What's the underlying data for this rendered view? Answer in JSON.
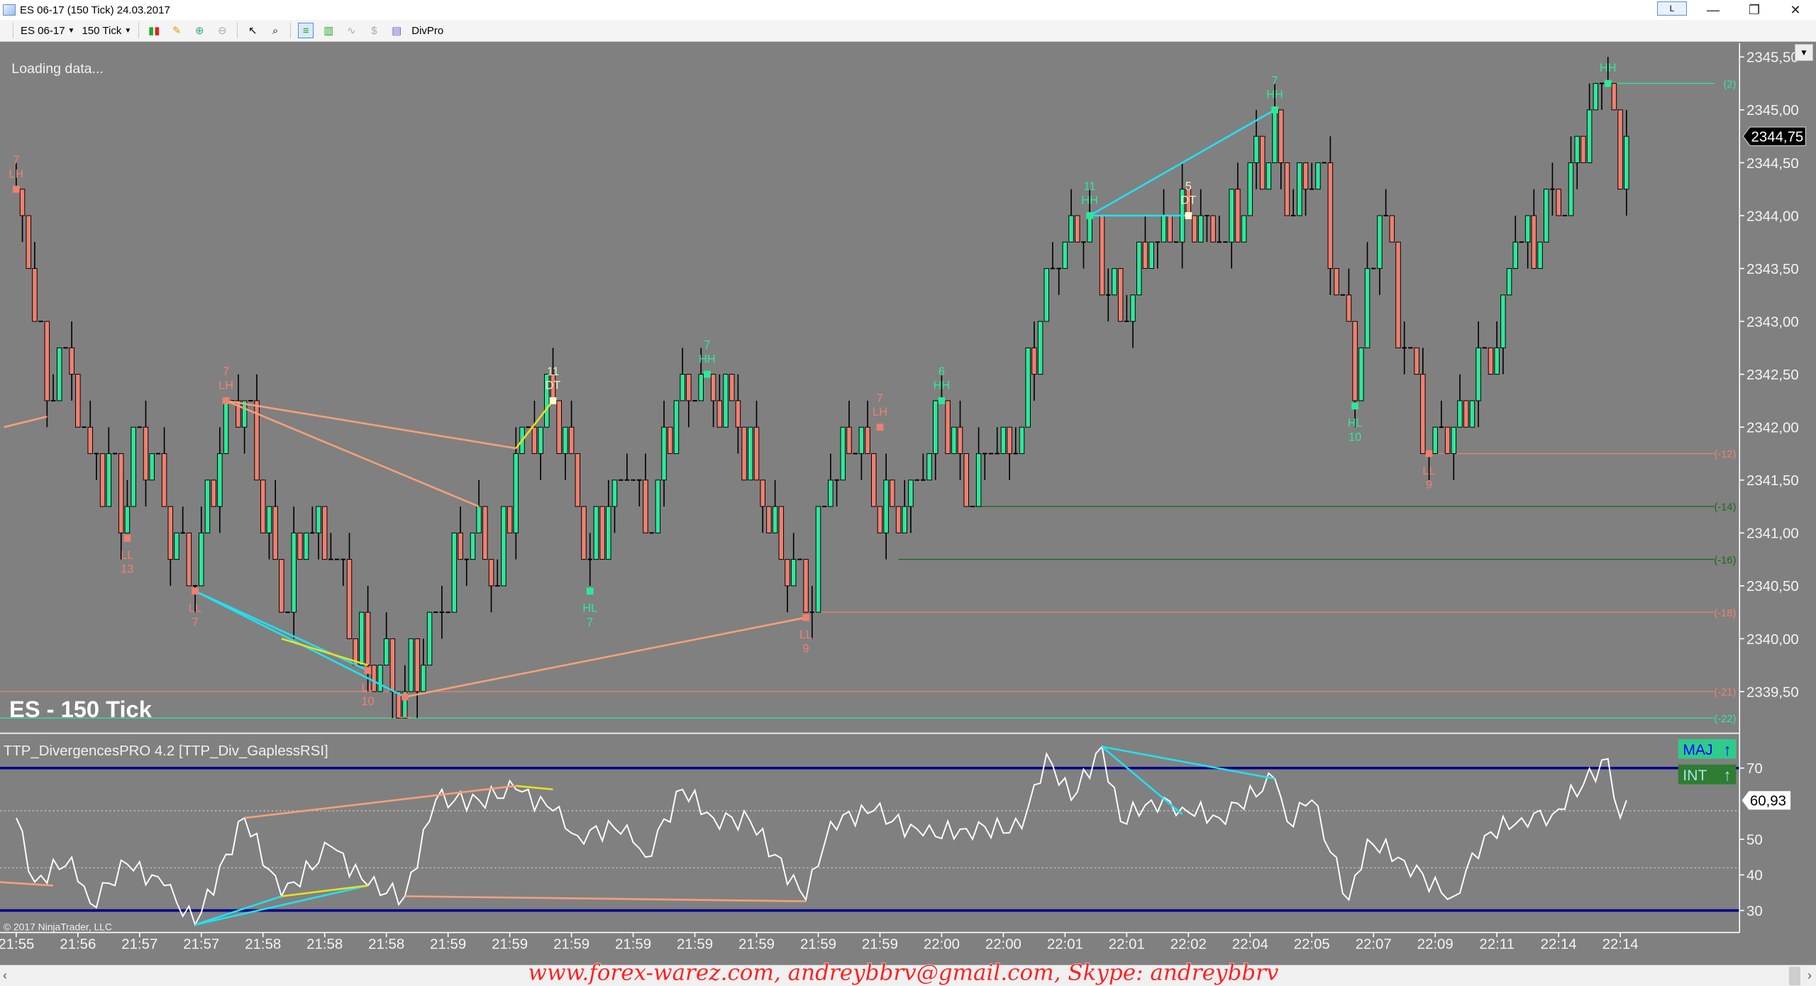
{
  "window": {
    "title": "ES 06-17 (150 Tick)  24.03.2017",
    "layout_button": "L",
    "minimize": "—",
    "restore": "❐",
    "close": "✕"
  },
  "toolbar": {
    "instrument": "ES 06-17",
    "interval": "150 Tick",
    "divpro": "DivPro"
  },
  "chart": {
    "loading_text": "Loading data...",
    "panel_title": "ES - 150 Tick",
    "indicator_title": "TTP_DivergencesPRO 4.2 [TTP_Div_GaplessRSI]",
    "copyright": "© 2017 NinjaTrader, LLC",
    "watermark": "www.forex-warez.com, andreybbrv@gmail.com, Skype: andreybbrv",
    "colors": {
      "background": "#808080",
      "up": "#2ee89a",
      "down": "#f08070",
      "cyan": "#22e0f0",
      "salmon": "#f4a07a",
      "yellow": "#e8e020",
      "hh": "#2ee89a",
      "ll": "#f08070",
      "rsi": "#ffffff",
      "bands": "#00008b"
    }
  },
  "chart_data": [
    {
      "type": "candlestick",
      "title": "ES - 150 Tick",
      "y_ticks": [
        "2345,50",
        "2345,00",
        "2344,50",
        "2344,00",
        "2343,50",
        "2343,00",
        "2342,50",
        "2342,00",
        "2341,50",
        "2341,00",
        "2340,50",
        "2340,00",
        "2339,50"
      ],
      "ylim": [
        2339.25,
        2345.75
      ],
      "last_price": "2344,75",
      "x_ticks": [
        "21:55",
        "21:56",
        "21:57",
        "21:57",
        "21:58",
        "21:58",
        "21:58",
        "21:59",
        "21:59",
        "21:59",
        "21:59",
        "21:59",
        "21:59",
        "21:59",
        "21:59",
        "22:00",
        "22:00",
        "22:01",
        "22:01",
        "22:02",
        "22:04",
        "22:05",
        "22:07",
        "22:09",
        "22:11",
        "22:14",
        "22:14"
      ],
      "approx_close_path": [
        [
          0,
          2344.25
        ],
        [
          3,
          2343.0
        ],
        [
          5,
          2342.25
        ],
        [
          7,
          2342.75
        ],
        [
          12,
          2341.75
        ],
        [
          18,
          2341.25
        ],
        [
          20,
          2342.0
        ],
        [
          24,
          2341.25
        ],
        [
          29,
          2340.5
        ],
        [
          34,
          2342.25
        ],
        [
          37,
          2342.25
        ],
        [
          43,
          2340.25
        ],
        [
          47,
          2341.0
        ],
        [
          51,
          2340.75
        ],
        [
          57,
          2339.75
        ],
        [
          63,
          2339.5
        ],
        [
          68,
          2340.25
        ],
        [
          75,
          2341.25
        ],
        [
          78,
          2340.5
        ],
        [
          81,
          2341.75
        ],
        [
          87,
          2342.25
        ],
        [
          91,
          2341.25
        ],
        [
          93,
          2340.75
        ],
        [
          99,
          2341.5
        ],
        [
          103,
          2341.0
        ],
        [
          107,
          2342.25
        ],
        [
          112,
          2342.5
        ],
        [
          117,
          2342.0
        ],
        [
          121,
          2341.25
        ],
        [
          128,
          2340.25
        ],
        [
          132,
          2341.5
        ],
        [
          136,
          2341.75
        ],
        [
          143,
          2341.0
        ],
        [
          147,
          2341.5
        ],
        [
          150,
          2342.25
        ],
        [
          154,
          2341.25
        ],
        [
          158,
          2341.75
        ],
        [
          163,
          2342.0
        ],
        [
          167,
          2343.5
        ],
        [
          174,
          2344.0
        ],
        [
          179,
          2343.0
        ],
        [
          184,
          2343.75
        ],
        [
          190,
          2344.0
        ],
        [
          195,
          2343.75
        ],
        [
          199,
          2344.0
        ],
        [
          204,
          2345.0
        ],
        [
          206,
          2344.0
        ],
        [
          211,
          2344.5
        ],
        [
          217,
          2342.25
        ],
        [
          221,
          2344.0
        ],
        [
          225,
          2342.75
        ],
        [
          229,
          2341.75
        ],
        [
          236,
          2342.25
        ],
        [
          240,
          2342.75
        ],
        [
          243,
          2343.75
        ],
        [
          247,
          2343.75
        ],
        [
          252,
          2344.5
        ],
        [
          258,
          2345.25
        ],
        [
          260,
          2344.25
        ],
        [
          261,
          2344.75
        ]
      ],
      "swing_labels": [
        {
          "lines": [
            "7",
            "LH"
          ],
          "bar": 0,
          "price": 2344.25,
          "pos": "above",
          "kind": "ll"
        },
        {
          "lines": [
            "LL",
            "13"
          ],
          "bar": 18,
          "price": 2340.95,
          "pos": "below",
          "kind": "ll"
        },
        {
          "lines": [
            "7",
            "LH"
          ],
          "bar": 34,
          "price": 2342.25,
          "pos": "above",
          "kind": "ll"
        },
        {
          "lines": [
            "LL",
            "7"
          ],
          "bar": 29,
          "price": 2340.45,
          "pos": "below",
          "kind": "ll"
        },
        {
          "lines": [
            "LL",
            "10"
          ],
          "bar": 57,
          "price": 2339.7,
          "pos": "below",
          "kind": "ll"
        },
        {
          "lines": [
            "LL"
          ],
          "bar": 63,
          "price": 2339.45,
          "pos": "below",
          "kind": "ll"
        },
        {
          "lines": [
            "11",
            "DT"
          ],
          "bar": 87,
          "price": 2342.25,
          "pos": "above",
          "kind": "dt"
        },
        {
          "lines": [
            "HL",
            "7"
          ],
          "bar": 93,
          "price": 2340.45,
          "pos": "below",
          "kind": "hh"
        },
        {
          "lines": [
            "7",
            "HH"
          ],
          "bar": 112,
          "price": 2342.5,
          "pos": "above",
          "kind": "hh"
        },
        {
          "lines": [
            "LL",
            "9"
          ],
          "bar": 128,
          "price": 2340.2,
          "pos": "below",
          "kind": "ll"
        },
        {
          "lines": [
            "7",
            "LH"
          ],
          "bar": 140,
          "price": 2342.0,
          "pos": "above",
          "kind": "ll"
        },
        {
          "lines": [
            "6",
            "HH"
          ],
          "bar": 150,
          "price": 2342.25,
          "pos": "above",
          "kind": "hh"
        },
        {
          "lines": [
            "11",
            "HH"
          ],
          "bar": 174,
          "price": 2344.0,
          "pos": "above",
          "kind": "hh"
        },
        {
          "lines": [
            "5",
            "DT"
          ],
          "bar": 190,
          "price": 2344.0,
          "pos": "above",
          "kind": "dt"
        },
        {
          "lines": [
            "7",
            "HH"
          ],
          "bar": 204,
          "price": 2345.0,
          "pos": "above",
          "kind": "hh"
        },
        {
          "lines": [
            "HL",
            "10"
          ],
          "bar": 217,
          "price": 2342.2,
          "pos": "below",
          "kind": "hh"
        },
        {
          "lines": [
            "LL",
            "9"
          ],
          "bar": 229,
          "price": 2341.75,
          "pos": "below",
          "kind": "ll"
        },
        {
          "lines": [
            "HH"
          ],
          "bar": 258,
          "price": 2345.25,
          "pos": "above",
          "kind": "hh"
        }
      ],
      "divergence_lines": [
        {
          "color": "cyan",
          "from": [
            29,
            2340.45
          ],
          "to": [
            57,
            2339.7
          ]
        },
        {
          "color": "cyan",
          "from": [
            29,
            2340.45
          ],
          "to": [
            63,
            2339.45
          ]
        },
        {
          "color": "yellow",
          "from": [
            43,
            2340.0
          ],
          "to": [
            57,
            2339.75
          ]
        },
        {
          "color": "salmon",
          "from": [
            34,
            2342.25
          ],
          "to": [
            81,
            2341.8
          ]
        },
        {
          "color": "salmon",
          "from": [
            34,
            2342.25
          ],
          "to": [
            75,
            2341.25
          ]
        },
        {
          "color": "salmon",
          "from": [
            63,
            2339.45
          ],
          "to": [
            128,
            2340.2
          ]
        },
        {
          "color": "salmon",
          "from": [
            -2,
            2342.0
          ],
          "to": [
            5,
            2342.1
          ]
        },
        {
          "color": "yellow",
          "from": [
            81,
            2341.8
          ],
          "to": [
            87,
            2342.25
          ]
        },
        {
          "color": "cyan",
          "from": [
            174,
            2344.0
          ],
          "to": [
            204,
            2345.0
          ]
        },
        {
          "color": "cyan",
          "from": [
            174,
            2344.0
          ],
          "to": [
            190,
            2344.0
          ]
        }
      ],
      "levels": [
        {
          "label": "(2)",
          "price": 2345.25,
          "from_bar": 258,
          "color": "#2ee89a"
        },
        {
          "label": "(-12)",
          "price": 2341.75,
          "from_bar": 229,
          "color": "#f08070"
        },
        {
          "label": "(-14)",
          "price": 2341.25,
          "from_bar": 154,
          "color": "#1a6a1a"
        },
        {
          "label": "(-16)",
          "price": 2340.75,
          "from_bar": 143,
          "color": "#1a6a1a"
        },
        {
          "label": "(-18)",
          "price": 2340.25,
          "from_bar": 128,
          "color": "#f08070"
        },
        {
          "label": "(-21)",
          "price": 2339.5,
          "from_bar": -3,
          "color": "#f08070"
        },
        {
          "label": "(-22)",
          "price": 2339.25,
          "from_bar": -3,
          "color": "#2ee89a"
        }
      ]
    },
    {
      "type": "line",
      "title": "TTP_DivergencesPRO 4.2 [TTP_Div_GaplessRSI]",
      "y_ticks": [
        "70",
        "50",
        "40",
        "30"
      ],
      "ylim": [
        25,
        80
      ],
      "bands": [
        70,
        30
      ],
      "last_value": "60,93",
      "badges": [
        {
          "label": "MAJ",
          "arrow": "↑",
          "bg": "#2ecc8a",
          "fg": "#0000ff"
        },
        {
          "label": "INT",
          "arrow": "↑",
          "bg": "#2e7d32",
          "fg": "#b0e0e6"
        }
      ],
      "approx_rsi_path": [
        [
          0,
          56
        ],
        [
          3,
          38
        ],
        [
          9,
          45
        ],
        [
          12,
          32
        ],
        [
          18,
          43
        ],
        [
          24,
          37
        ],
        [
          29,
          26
        ],
        [
          37,
          56
        ],
        [
          43,
          34
        ],
        [
          51,
          48
        ],
        [
          57,
          37
        ],
        [
          63,
          34
        ],
        [
          68,
          61
        ],
        [
          75,
          61
        ],
        [
          81,
          64
        ],
        [
          87,
          58
        ],
        [
          91,
          51
        ],
        [
          99,
          54
        ],
        [
          102,
          45
        ],
        [
          108,
          64
        ],
        [
          113,
          56
        ],
        [
          119,
          55
        ],
        [
          128,
          33
        ],
        [
          132,
          55
        ],
        [
          139,
          58
        ],
        [
          147,
          51
        ],
        [
          154,
          53
        ],
        [
          163,
          53
        ],
        [
          167,
          74
        ],
        [
          171,
          61
        ],
        [
          176,
          76
        ],
        [
          179,
          55
        ],
        [
          184,
          61
        ],
        [
          189,
          59
        ],
        [
          195,
          56
        ],
        [
          204,
          67
        ],
        [
          206,
          55
        ],
        [
          210,
          61
        ],
        [
          216,
          33
        ],
        [
          219,
          50
        ],
        [
          225,
          44
        ],
        [
          231,
          35
        ],
        [
          233,
          34
        ],
        [
          238,
          51
        ],
        [
          244,
          56
        ],
        [
          249,
          57
        ],
        [
          258,
          72.6
        ],
        [
          260,
          56
        ],
        [
          261,
          60.93
        ]
      ],
      "divergence_lines": [
        {
          "color": "salmon",
          "from": [
            37,
            56
          ],
          "to": [
            81,
            65
          ]
        },
        {
          "color": "yellow",
          "from": [
            81,
            65
          ],
          "to": [
            87,
            64
          ]
        },
        {
          "color": "cyan",
          "from": [
            29,
            26
          ],
          "to": [
            43,
            34
          ]
        },
        {
          "color": "cyan",
          "from": [
            29,
            26
          ],
          "to": [
            57,
            37
          ]
        },
        {
          "color": "yellow",
          "from": [
            43,
            34
          ],
          "to": [
            57,
            37
          ]
        },
        {
          "color": "salmon",
          "from": [
            63,
            34
          ],
          "to": [
            128,
            32.6
          ]
        },
        {
          "color": "salmon",
          "from": [
            -3,
            38
          ],
          "to": [
            6,
            37
          ]
        },
        {
          "color": "cyan",
          "from": [
            176,
            76
          ],
          "to": [
            204,
            67
          ]
        },
        {
          "color": "cyan",
          "from": [
            176,
            76
          ],
          "to": [
            189,
            57
          ]
        }
      ]
    }
  ]
}
